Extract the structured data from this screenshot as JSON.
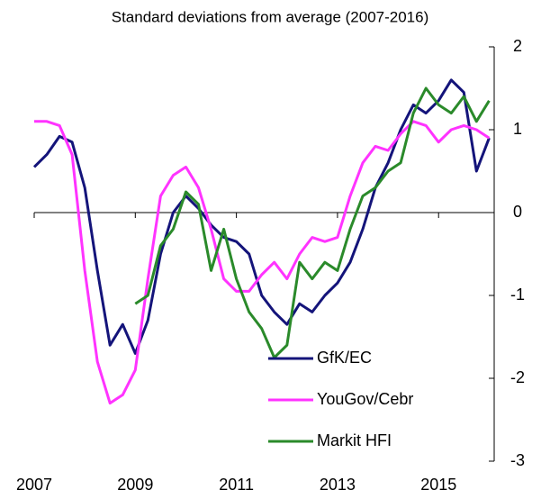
{
  "chart_data": {
    "type": "line",
    "title": "Standard deviations from average (2007-2016)",
    "x": [
      2007.0,
      2007.25,
      2007.5,
      2007.75,
      2008.0,
      2008.25,
      2008.5,
      2008.75,
      2009.0,
      2009.25,
      2009.5,
      2009.75,
      2010.0,
      2010.25,
      2010.5,
      2010.75,
      2011.0,
      2011.25,
      2011.5,
      2011.75,
      2012.0,
      2012.25,
      2012.5,
      2012.75,
      2013.0,
      2013.25,
      2013.5,
      2013.75,
      2014.0,
      2014.25,
      2014.5,
      2014.75,
      2015.0,
      2015.25,
      2015.5,
      2015.75,
      2016.0
    ],
    "series": [
      {
        "name": "GfK/EC",
        "color": "#14147a",
        "values": [
          0.55,
          0.7,
          0.92,
          0.85,
          0.3,
          -0.7,
          -1.6,
          -1.35,
          -1.7,
          -1.3,
          -0.5,
          0.0,
          0.2,
          0.05,
          -0.15,
          -0.3,
          -0.35,
          -0.5,
          -1.0,
          -1.2,
          -1.35,
          -1.1,
          -1.2,
          -1.0,
          -0.85,
          -0.6,
          -0.2,
          0.3,
          0.6,
          1.0,
          1.3,
          1.2,
          1.35,
          1.6,
          1.45,
          0.5,
          0.9
        ]
      },
      {
        "name": "YouGov/Cebr",
        "color": "#ff33ff",
        "values": [
          1.1,
          1.1,
          1.05,
          0.7,
          -0.7,
          -1.8,
          -2.3,
          -2.2,
          -1.9,
          -0.8,
          0.2,
          0.45,
          0.55,
          0.3,
          -0.2,
          -0.8,
          -0.95,
          -0.95,
          -0.75,
          -0.6,
          -0.8,
          -0.5,
          -0.3,
          -0.35,
          -0.3,
          0.2,
          0.6,
          0.8,
          0.75,
          0.95,
          1.1,
          1.05,
          0.85,
          1.0,
          1.05,
          1.0,
          0.9
        ]
      },
      {
        "name": "Markit HFI",
        "color": "#2a8a2a",
        "values": [
          null,
          null,
          null,
          null,
          null,
          null,
          null,
          null,
          -1.1,
          -1.0,
          -0.4,
          -0.2,
          0.25,
          0.1,
          -0.7,
          -0.2,
          -0.8,
          -1.2,
          -1.4,
          -1.75,
          -1.6,
          -0.6,
          -0.8,
          -0.6,
          -0.7,
          -0.2,
          0.2,
          0.3,
          0.5,
          0.6,
          1.2,
          1.5,
          1.3,
          1.2,
          1.4,
          1.1,
          1.35
        ]
      }
    ],
    "xlim": [
      2007,
      2016.1
    ],
    "xticks": [
      2007,
      2009,
      2011,
      2013,
      2015
    ],
    "ylim": [
      -3,
      2
    ],
    "yticks": [
      -3,
      -2,
      -1,
      0,
      1,
      2
    ],
    "legend_position": "lower-right"
  }
}
